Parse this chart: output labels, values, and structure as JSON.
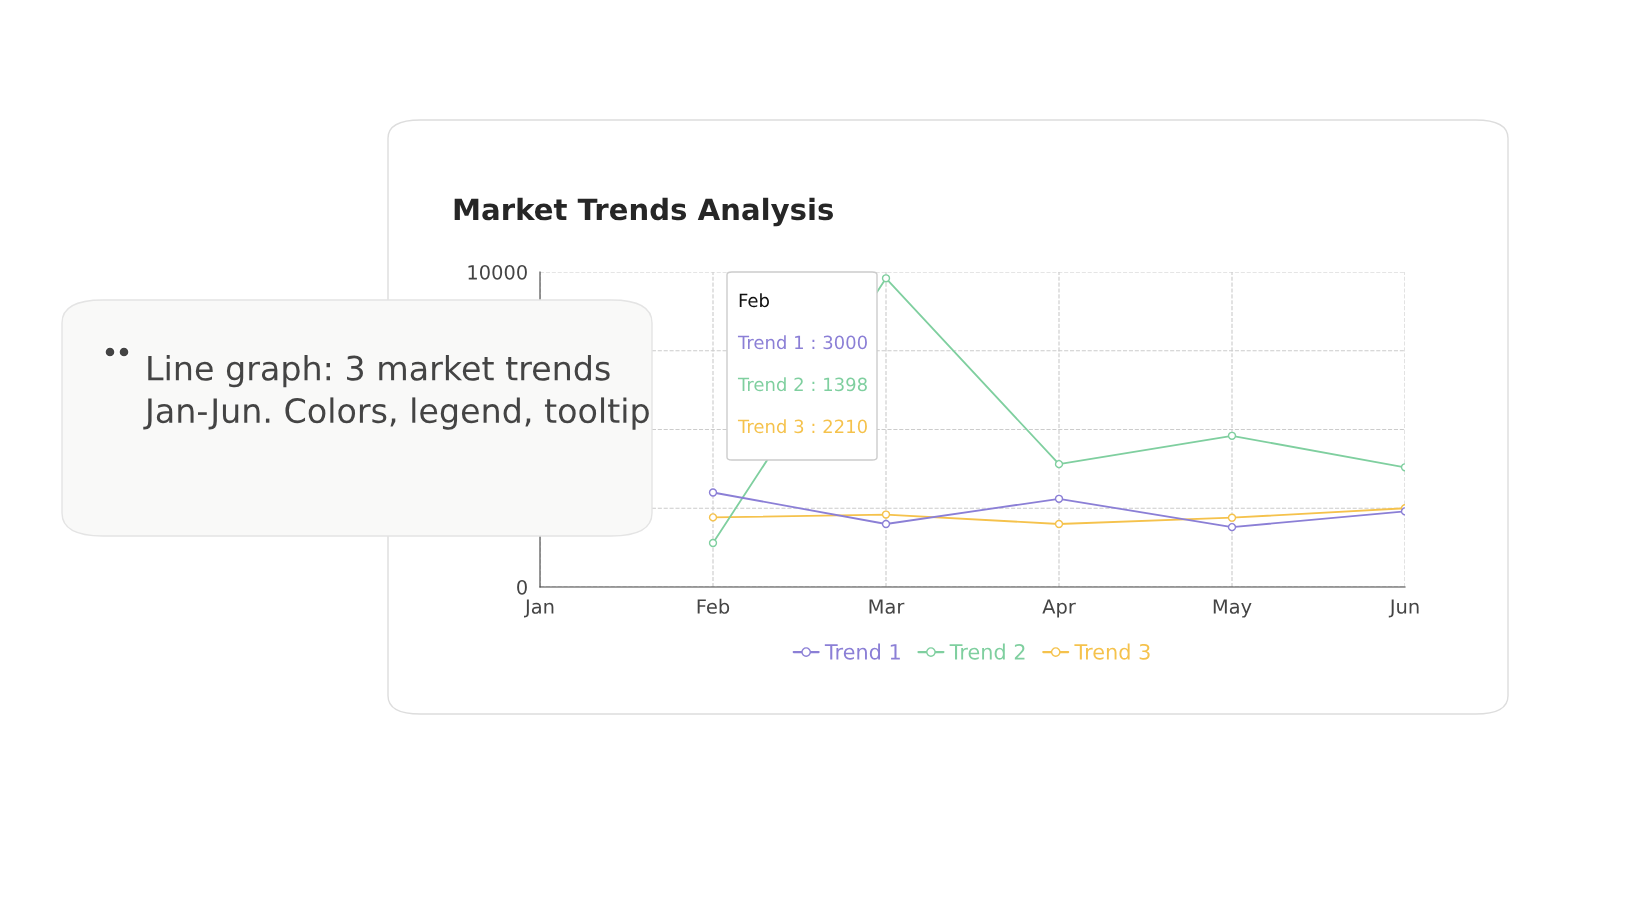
{
  "chart_data": {
    "type": "line",
    "title": "Market Trends Analysis",
    "categories": [
      "Jan",
      "Feb",
      "Mar",
      "Apr",
      "May",
      "Jun"
    ],
    "series": [
      {
        "name": "Trend 1",
        "color": "#8b7fd6",
        "values": [
          null,
          3000,
          2000,
          2800,
          1900,
          2400
        ]
      },
      {
        "name": "Trend 2",
        "color": "#7fcf9f",
        "values": [
          null,
          1398,
          9800,
          3900,
          4800,
          3800
        ]
      },
      {
        "name": "Trend 3",
        "color": "#f5c24c",
        "values": [
          null,
          2210,
          2300,
          2000,
          2200,
          2500
        ]
      }
    ],
    "ylim": [
      0,
      10000
    ],
    "yticks": [
      0,
      {
        "value": 2500,
        "label": null
      },
      {
        "value": 5000,
        "label": null
      },
      {
        "value": 7500,
        "label": null
      },
      10000
    ],
    "grid": true,
    "legend": "bottom",
    "marker": "circle",
    "line_style": "solid",
    "annotations": [
      "Line graph: 3 market trends Jan-Jun. Colors, legend, tooltip",
      "Feb",
      "Trend 1 : 3000",
      "Trend 2 : 1398",
      "Trend 3 : 2210"
    ]
  }
}
